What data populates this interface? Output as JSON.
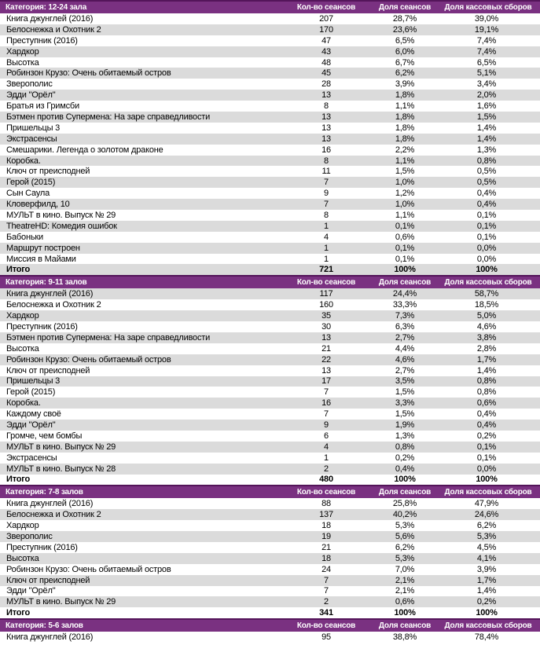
{
  "colors": {
    "header_bg": "#7a3181",
    "header_border": "#54155a",
    "header_text": "#ffffff",
    "row_alt_bg": "#dbdbdb",
    "row_text": "#000000"
  },
  "columns": {
    "sessions": "Кол-во сеансов",
    "share_sessions": "Доля сеансов",
    "share_box": "Доля кассовых сборов"
  },
  "sections": [
    {
      "category": "Категория: 12-24 зала",
      "rows": [
        [
          "Книга джунглей (2016)",
          "207",
          "28,7%",
          "39,0%"
        ],
        [
          "Белоснежка и Охотник 2",
          "170",
          "23,6%",
          "19,1%"
        ],
        [
          "Преступник (2016)",
          "47",
          "6,5%",
          "7,4%"
        ],
        [
          "Хардкор",
          "43",
          "6,0%",
          "7,4%"
        ],
        [
          "Высотка",
          "48",
          "6,7%",
          "6,5%"
        ],
        [
          "Робинзон Крузо: Очень обитаемый остров",
          "45",
          "6,2%",
          "5,1%"
        ],
        [
          "Зверополис",
          "28",
          "3,9%",
          "3,4%"
        ],
        [
          "Эдди \"Орёл\"",
          "13",
          "1,8%",
          "2,0%"
        ],
        [
          "Братья из Гримсби",
          "8",
          "1,1%",
          "1,6%"
        ],
        [
          "Бэтмен против Супермена: На заре справедливости",
          "13",
          "1,8%",
          "1,5%"
        ],
        [
          "Пришельцы 3",
          "13",
          "1,8%",
          "1,4%"
        ],
        [
          "Экстрасенсы",
          "13",
          "1,8%",
          "1,4%"
        ],
        [
          "Смешарики. Легенда о золотом драконе",
          "16",
          "2,2%",
          "1,3%"
        ],
        [
          "Коробка.",
          "8",
          "1,1%",
          "0,8%"
        ],
        [
          "Ключ от преисподней",
          "11",
          "1,5%",
          "0,5%"
        ],
        [
          "Герой (2015)",
          "7",
          "1,0%",
          "0,5%"
        ],
        [
          "Сын Саула",
          "9",
          "1,2%",
          "0,4%"
        ],
        [
          "Кловерфилд, 10",
          "7",
          "1,0%",
          "0,4%"
        ],
        [
          "МУЛЬТ в кино. Выпуск № 29",
          "8",
          "1,1%",
          "0,1%"
        ],
        [
          "TheatreHD: Комедия ошибок",
          "1",
          "0,1%",
          "0,1%"
        ],
        [
          "Бабоньки",
          "4",
          "0,6%",
          "0,1%"
        ],
        [
          "Маршрут построен",
          "1",
          "0,1%",
          "0,0%"
        ],
        [
          "Миссия в Майами",
          "1",
          "0,1%",
          "0,0%"
        ]
      ],
      "total": [
        "Итого",
        "721",
        "100%",
        "100%"
      ]
    },
    {
      "category": "Категория: 9-11 залов",
      "rows": [
        [
          "Книга джунглей (2016)",
          "117",
          "24,4%",
          "58,7%"
        ],
        [
          "Белоснежка и Охотник 2",
          "160",
          "33,3%",
          "18,5%"
        ],
        [
          "Хардкор",
          "35",
          "7,3%",
          "5,0%"
        ],
        [
          "Преступник (2016)",
          "30",
          "6,3%",
          "4,6%"
        ],
        [
          "Бэтмен против Супермена: На заре справедливости",
          "13",
          "2,7%",
          "3,8%"
        ],
        [
          "Высотка",
          "21",
          "4,4%",
          "2,8%"
        ],
        [
          "Робинзон Крузо: Очень обитаемый остров",
          "22",
          "4,6%",
          "1,7%"
        ],
        [
          "Ключ от преисподней",
          "13",
          "2,7%",
          "1,4%"
        ],
        [
          "Пришельцы 3",
          "17",
          "3,5%",
          "0,8%"
        ],
        [
          "Герой (2015)",
          "7",
          "1,5%",
          "0,8%"
        ],
        [
          "Коробка.",
          "16",
          "3,3%",
          "0,6%"
        ],
        [
          "Каждому своё",
          "7",
          "1,5%",
          "0,4%"
        ],
        [
          "Эдди \"Орёл\"",
          "9",
          "1,9%",
          "0,4%"
        ],
        [
          "Громче, чем бомбы",
          "6",
          "1,3%",
          "0,2%"
        ],
        [
          "МУЛЬТ в кино. Выпуск № 29",
          "4",
          "0,8%",
          "0,1%"
        ],
        [
          "Экстрасенсы",
          "1",
          "0,2%",
          "0,1%"
        ],
        [
          "МУЛЬТ в кино. Выпуск № 28",
          "2",
          "0,4%",
          "0,0%"
        ]
      ],
      "total": [
        "Итого",
        "480",
        "100%",
        "100%"
      ]
    },
    {
      "category": "Категория: 7-8 залов",
      "rows": [
        [
          "Книга джунглей (2016)",
          "88",
          "25,8%",
          "47,9%"
        ],
        [
          "Белоснежка и Охотник 2",
          "137",
          "40,2%",
          "24,6%"
        ],
        [
          "Хардкор",
          "18",
          "5,3%",
          "6,2%"
        ],
        [
          "Зверополис",
          "19",
          "5,6%",
          "5,3%"
        ],
        [
          "Преступник (2016)",
          "21",
          "6,2%",
          "4,5%"
        ],
        [
          "Высотка",
          "18",
          "5,3%",
          "4,1%"
        ],
        [
          "Робинзон Крузо: Очень обитаемый остров",
          "24",
          "7,0%",
          "3,9%"
        ],
        [
          "Ключ от преисподней",
          "7",
          "2,1%",
          "1,7%"
        ],
        [
          "Эдди \"Орёл\"",
          "7",
          "2,1%",
          "1,4%"
        ],
        [
          "МУЛЬТ в кино. Выпуск № 29",
          "2",
          "0,6%",
          "0,2%"
        ]
      ],
      "total": [
        "Итого",
        "341",
        "100%",
        "100%"
      ]
    },
    {
      "category": "Категория: 5-6 залов",
      "rows": [
        [
          "Книга джунглей (2016)",
          "95",
          "38,8%",
          "78,4%"
        ]
      ],
      "total": null
    }
  ]
}
